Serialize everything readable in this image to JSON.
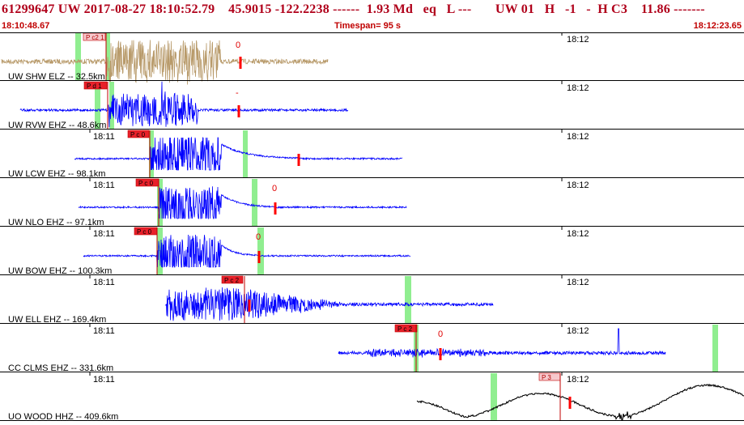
{
  "header": {
    "title": "61299647 UW 2017-08-27 18:10:52.79    45.9015 -122.2238 ------  1.93 Md   eq   L ---       UW 01   H   -1   -  H C3    11.86 -------",
    "start_time": "18:10:48.67",
    "timespan": "Timespan=  95 s",
    "end_time": "18:12:23.65"
  },
  "colors": {
    "title": "#b0001a",
    "trace_short_period": "#0000ff",
    "trace_first": "#b89a6a",
    "trace_broadband": "#000000",
    "pick": "#ff0000",
    "pick_box": "#e8202a",
    "window": "#90ee90"
  },
  "tracks": [
    {
      "label": "UW SHW ELZ -- 32.5km",
      "time_a": "",
      "time_b": "18:12",
      "pick_label": "P c2 1",
      "coda_label": "0",
      "color": "trace_first"
    },
    {
      "label": "UW RVW EHZ -- 48.6km",
      "time_a": "",
      "time_b": "18:12",
      "pick_label": "P d 1",
      "coda_label": "-",
      "color": "trace_short_period"
    },
    {
      "label": "UW LCW EHZ -- 98.1km",
      "time_a": "18:11",
      "time_b": "18:12",
      "pick_label": "P c 0",
      "coda_label": "",
      "color": "trace_short_period"
    },
    {
      "label": "UW NLO EHZ -- 97.1km",
      "time_a": "18:11",
      "time_b": "18:12",
      "pick_label": "P c 0",
      "coda_label": "0",
      "color": "trace_short_period"
    },
    {
      "label": "UW BOW EHZ -- 100.3km",
      "time_a": "18:11",
      "time_b": "18:12",
      "pick_label": "P c 0",
      "coda_label": "0",
      "color": "trace_short_period"
    },
    {
      "label": "UW ELL EHZ -- 169.4km",
      "time_a": "18:11",
      "time_b": "18:12",
      "pick_label": "P c 2",
      "coda_label": "",
      "color": "trace_short_period"
    },
    {
      "label": "CC CLMS EHZ -- 331.6km",
      "time_a": "18:11",
      "time_b": "18:12",
      "pick_label": "P c 2",
      "coda_label": "0",
      "color": "trace_short_period"
    },
    {
      "label": "UO WOOD HHZ -- 409.6km",
      "time_a": "18:11",
      "time_b": "18:12",
      "pick_label": "P 3",
      "coda_label": "",
      "color": "trace_broadband"
    }
  ]
}
